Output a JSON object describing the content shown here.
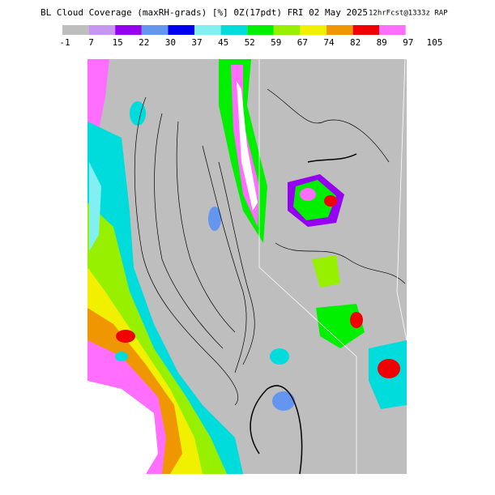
{
  "title": "BL Cloud Coverage (maxRH-grads) [%] 0Z(17pdt) FRI 02 May 2025",
  "subtitle": "12hrFcst@1333z RAP",
  "colorbar": {
    "labels": [
      -1,
      7,
      15,
      22,
      30,
      37,
      45,
      52,
      59,
      67,
      74,
      82,
      89,
      97,
      105
    ],
    "colors": [
      "#bebebe",
      "#c896f0",
      "#9600f0",
      "#6496f0",
      "#0000f0",
      "#82f0f0",
      "#00dcdc",
      "#00f000",
      "#96f000",
      "#f0f000",
      "#f09600",
      "#f00000",
      "#ff6eff",
      "#ffffff"
    ]
  }
}
